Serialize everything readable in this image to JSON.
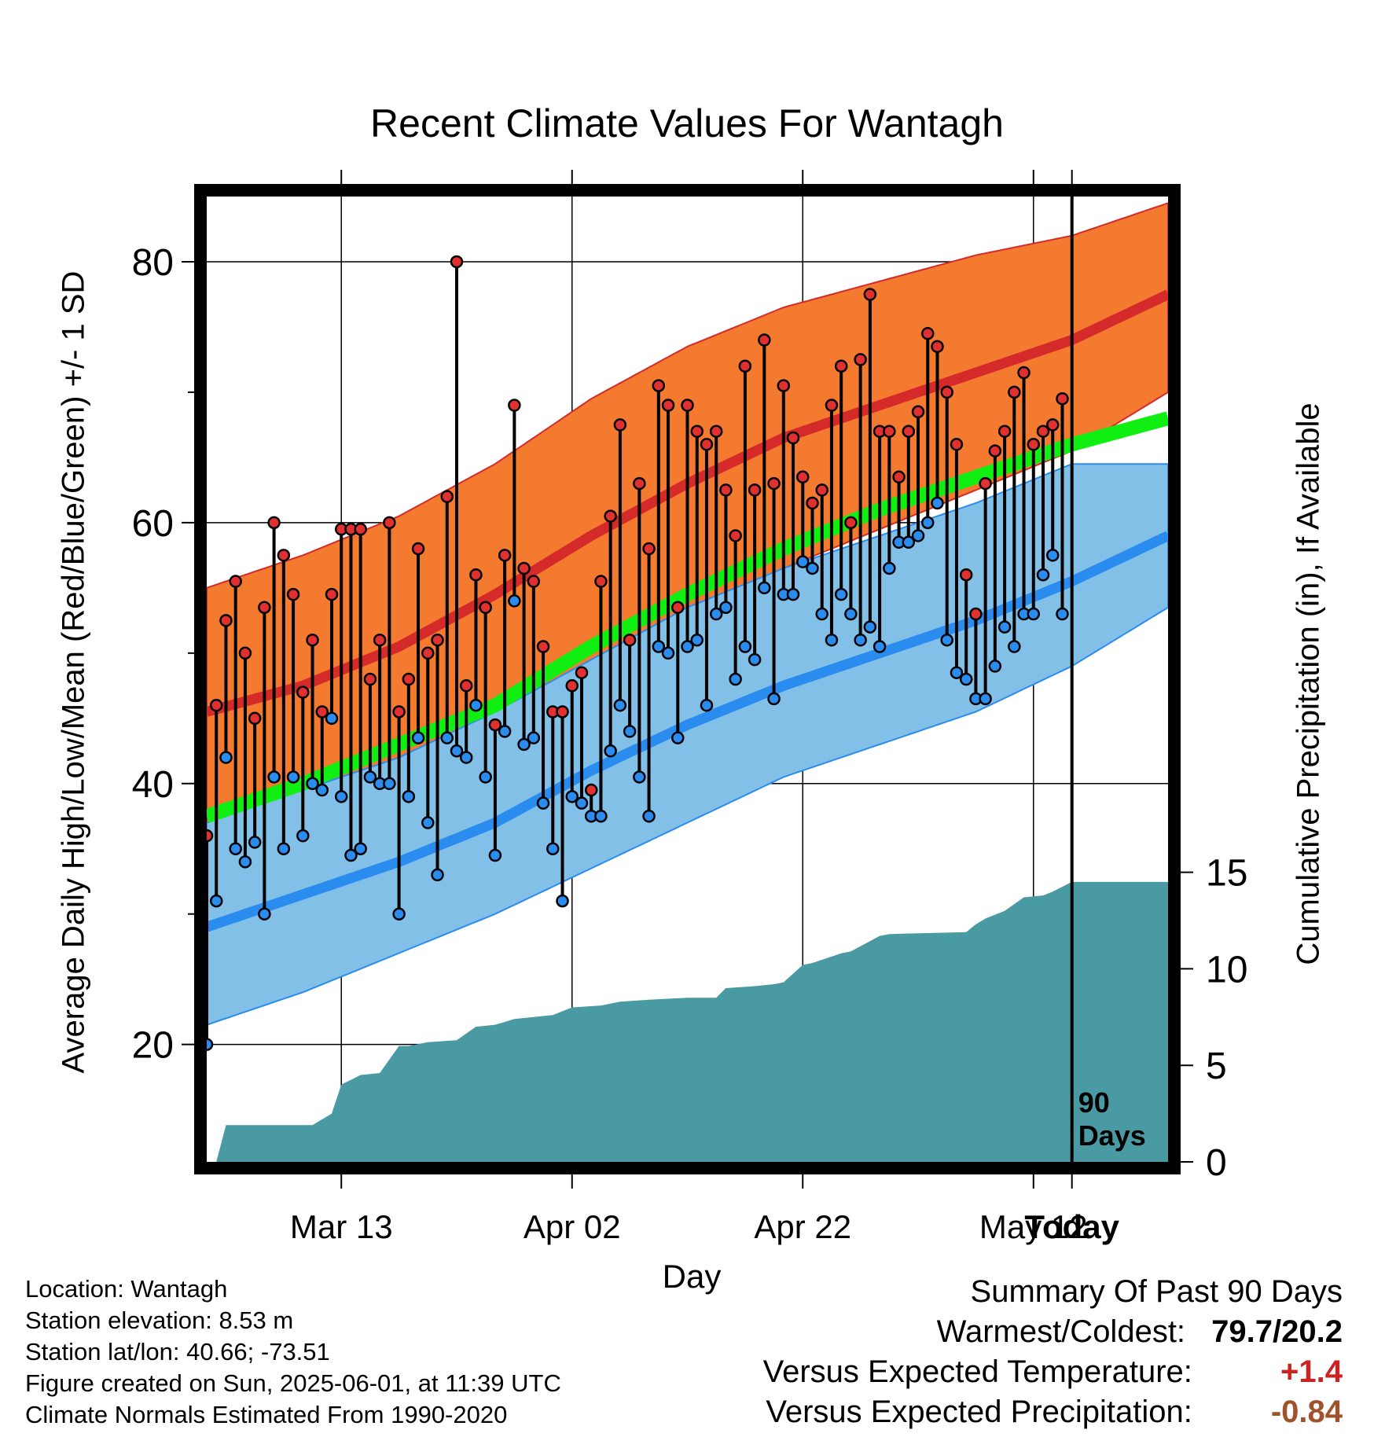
{
  "chart_data": {
    "type": "line",
    "title": "Recent Climate Values For Wantagh",
    "xlabel": "Day",
    "ylabel_left": "Average Daily High/Low/Mean (Red/Blue/Green) +/- 1 SD",
    "ylabel_right": "Cumulative Precipitation (in), If Available",
    "x_tick_labels": [
      "Mar 13",
      "Apr 02",
      "Apr 22",
      "May 12",
      "Today"
    ],
    "y_left_ticks": [
      "20",
      "40",
      "60",
      "80"
    ],
    "y_right_ticks": [
      "0",
      "5",
      "10",
      "15"
    ],
    "ylim_left": [
      11,
      85
    ],
    "ylim_right": [
      0,
      50
    ],
    "xlim_days": [
      1,
      101
    ],
    "today_marker": {
      "day": 91,
      "label_line1": "90",
      "label_line2": "Days"
    },
    "colors": {
      "high_band": "#f47a30",
      "high_mean": "#d52a2a",
      "low_band": "#82c0e8",
      "low_mean": "#2a8cee",
      "mean_line": "#11ee11",
      "precip": "#4a9aa4",
      "high_dot": "#e03030",
      "low_dot": "#2a8cee"
    },
    "normals": {
      "days": [
        1,
        11,
        21,
        31,
        41,
        51,
        61,
        71,
        81,
        91,
        101
      ],
      "high_mean": [
        45.5,
        47.5,
        50.5,
        54.5,
        59.0,
        63.0,
        66.5,
        69.0,
        71.5,
        74.0,
        77.5
      ],
      "high_upper": [
        55,
        57.5,
        60.5,
        64.5,
        69.5,
        73.5,
        76.5,
        78.5,
        80.5,
        82.0,
        84.5
      ],
      "high_lower": [
        36,
        38.0,
        41.0,
        44.5,
        49.0,
        53.0,
        56.5,
        59.5,
        62.5,
        65.5,
        70.0
      ],
      "mean_line": [
        37.5,
        40.0,
        43.0,
        46.0,
        50.5,
        54.5,
        58.0,
        61.0,
        63.5,
        66.0,
        68.0
      ],
      "low_mean": [
        29.0,
        31.5,
        34.0,
        37.0,
        41.0,
        44.5,
        47.5,
        50.0,
        52.5,
        55.5,
        59.0
      ],
      "low_upper": [
        37.0,
        39.5,
        42.0,
        45.5,
        49.5,
        53.5,
        56.5,
        59.0,
        61.5,
        64.5,
        64.5
      ],
      "low_lower": [
        21.5,
        24.0,
        27.0,
        30.0,
        33.5,
        37.0,
        40.5,
        43.0,
        45.5,
        49.0,
        53.5
      ]
    },
    "series": [
      {
        "name": "High",
        "values": [
          36.0,
          46.0,
          52.5,
          55.5,
          50.0,
          45.0,
          53.5,
          60.0,
          57.5,
          54.5,
          47.0,
          51.0,
          45.5,
          54.5,
          59.5,
          59.5,
          59.5,
          48.0,
          51.0,
          60.0,
          45.5,
          48.0,
          58.0,
          50.0,
          51.0,
          62.0,
          80.0,
          47.5,
          56.0,
          53.5,
          44.5,
          57.5,
          69.0,
          56.5,
          55.5,
          50.5,
          45.5,
          45.5,
          47.5,
          48.5,
          39.5,
          55.5,
          60.5,
          67.5,
          51.0,
          63.0,
          58.0,
          70.5,
          69.0,
          53.5,
          69.0,
          67.0,
          66.0,
          67.0,
          62.5,
          59.0,
          72.0,
          62.5,
          74.0,
          63.0,
          70.5,
          66.5,
          63.5,
          61.5,
          62.5,
          69.0,
          72.0,
          60.0,
          72.5,
          77.5,
          67.0,
          67.0,
          63.5,
          67.0,
          68.5,
          74.5,
          73.5,
          70.0,
          66.0,
          56.0,
          53.0,
          63.0,
          65.5,
          67.0,
          70.0,
          71.5,
          66.0,
          67.0,
          67.5,
          69.5
        ]
      },
      {
        "name": "Low",
        "values": [
          20.0,
          31.0,
          42.0,
          35.0,
          34.0,
          35.5,
          30.0,
          40.5,
          35.0,
          40.5,
          36.0,
          40.0,
          39.5,
          45.0,
          39.0,
          34.5,
          35.0,
          40.5,
          40.0,
          40.0,
          30.0,
          39.0,
          43.5,
          37.0,
          33.0,
          43.5,
          42.5,
          42.0,
          46.0,
          40.5,
          34.5,
          44.0,
          54.0,
          43.0,
          43.5,
          38.5,
          35.0,
          31.0,
          39.0,
          38.5,
          37.5,
          37.5,
          42.5,
          46.0,
          44.0,
          40.5,
          37.5,
          50.5,
          50.0,
          43.5,
          50.5,
          51.0,
          46.0,
          53.0,
          53.5,
          48.0,
          50.5,
          49.5,
          55.0,
          46.5,
          54.5,
          54.5,
          57.0,
          56.5,
          53.0,
          51.0,
          54.5,
          53.0,
          51.0,
          52.0,
          50.5,
          56.5,
          58.5,
          58.5,
          59.0,
          60.0,
          61.5,
          51.0,
          48.5,
          48.0,
          46.5,
          46.5,
          49.0,
          52.0,
          50.5,
          53.0,
          53.0,
          56.0,
          57.5,
          53.0
        ]
      }
    ],
    "cumulative_precip": {
      "days": [
        1,
        2,
        3,
        12,
        14,
        15,
        17,
        19,
        21,
        22,
        24,
        27,
        29,
        31,
        33,
        35,
        37,
        39,
        42,
        44,
        47,
        51,
        54,
        55,
        58,
        60,
        61,
        63,
        64,
        67,
        68,
        71,
        72,
        80,
        81,
        82,
        84,
        86,
        88,
        89,
        91,
        101
      ],
      "values": [
        0.0,
        0.0,
        1.9,
        1.9,
        2.5,
        4.0,
        4.5,
        4.6,
        6.0,
        6.0,
        6.2,
        6.3,
        7.0,
        7.1,
        7.4,
        7.5,
        7.6,
        8.0,
        8.1,
        8.3,
        8.4,
        8.5,
        8.5,
        9.0,
        9.1,
        9.2,
        9.3,
        10.2,
        10.3,
        10.8,
        10.9,
        11.7,
        11.8,
        11.9,
        12.3,
        12.6,
        13.0,
        13.7,
        13.8,
        14.0,
        14.5,
        14.5
      ]
    }
  },
  "info": {
    "location": "Location: Wantagh",
    "elevation": "Station elevation: 8.53 m",
    "latlon": "Station lat/lon: 40.66; -73.51",
    "created": "Figure created on Sun, 2025-06-01, at 11:39 UTC",
    "normals": "Climate Normals Estimated From 1990-2020"
  },
  "summary": {
    "heading": "Summary Of Past 90 Days",
    "warm_cold_label": "Warmest/Coldest:",
    "warm_cold_value": "79.7/20.2",
    "temp_label": "Versus Expected Temperature:",
    "temp_value": "+1.4",
    "precip_label": "Versus Expected Precipitation:",
    "precip_value": "-0.84"
  }
}
